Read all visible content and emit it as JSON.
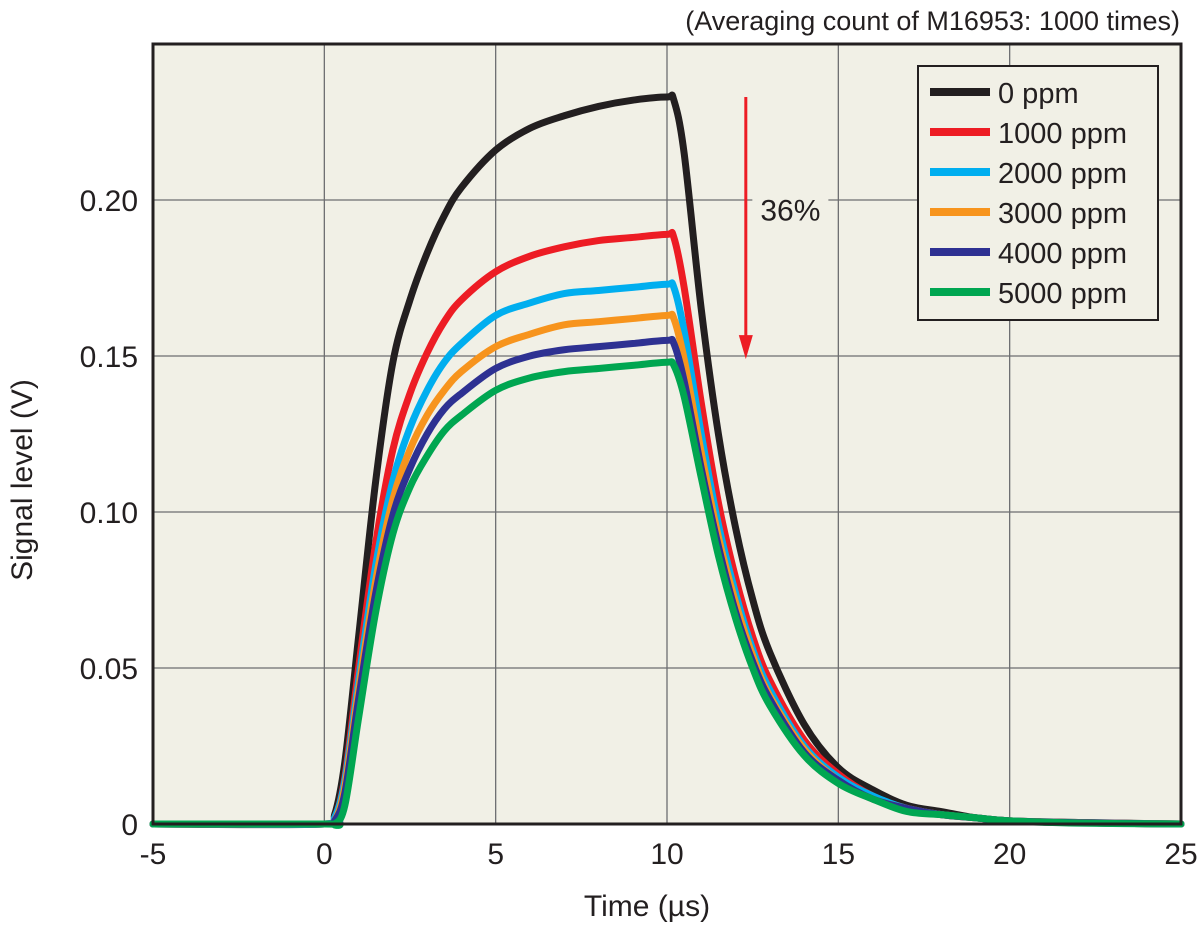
{
  "chart_data": {
    "type": "line",
    "title": "",
    "note": "(Averaging count of M16953: 1000 times)",
    "xlabel": "Time (µs)",
    "ylabel": "Signal level (V)",
    "xlim": [
      -5,
      25
    ],
    "ylim": [
      0,
      0.25
    ],
    "xticks": [
      -5,
      0,
      5,
      10,
      15,
      20,
      25
    ],
    "xtick_labels": [
      "-5",
      "0",
      "5",
      "10",
      "15",
      "20",
      "25"
    ],
    "yticks": [
      0,
      0.05,
      0.1,
      0.15,
      0.2
    ],
    "ytick_labels": [
      "0",
      "0.05",
      "0.10",
      "0.15",
      "0.20"
    ],
    "grid": true,
    "background": "#f1f0e6",
    "legend_position": "top-right",
    "x": [
      -5,
      0,
      0.3,
      0.6,
      1,
      1.5,
      2,
      2.5,
      3,
      3.5,
      4,
      5,
      6,
      7,
      8,
      9,
      10,
      10.2,
      10.5,
      11,
      11.5,
      12,
      12.5,
      13,
      14,
      15,
      16,
      17,
      18,
      19,
      20,
      22,
      25
    ],
    "series": [
      {
        "name": "0 ppm",
        "color": "#231f20",
        "values": [
          0,
          0,
          0.003,
          0.02,
          0.06,
          0.11,
          0.148,
          0.168,
          0.183,
          0.195,
          0.204,
          0.216,
          0.223,
          0.227,
          0.23,
          0.232,
          0.233,
          0.232,
          0.215,
          0.165,
          0.125,
          0.095,
          0.072,
          0.055,
          0.032,
          0.018,
          0.011,
          0.006,
          0.004,
          0.002,
          0.001,
          0.0005,
          0
        ]
      },
      {
        "name": "1000 ppm",
        "color": "#ed1c24",
        "values": [
          0,
          0,
          0.002,
          0.015,
          0.05,
          0.09,
          0.12,
          0.138,
          0.151,
          0.161,
          0.168,
          0.177,
          0.182,
          0.185,
          0.187,
          0.188,
          0.189,
          0.188,
          0.172,
          0.135,
          0.103,
          0.079,
          0.06,
          0.046,
          0.027,
          0.016,
          0.009,
          0.005,
          0.003,
          0.002,
          0.001,
          0.0004,
          0
        ]
      },
      {
        "name": "2000 ppm",
        "color": "#00aeef",
        "values": [
          0,
          0,
          0.002,
          0.014,
          0.046,
          0.083,
          0.11,
          0.127,
          0.139,
          0.148,
          0.154,
          0.163,
          0.167,
          0.17,
          0.171,
          0.172,
          0.173,
          0.172,
          0.158,
          0.125,
          0.096,
          0.074,
          0.056,
          0.043,
          0.025,
          0.015,
          0.009,
          0.005,
          0.003,
          0.002,
          0.001,
          0.0004,
          0
        ]
      },
      {
        "name": "3000 ppm",
        "color": "#f7941d",
        "values": [
          0,
          0,
          0.001,
          0.012,
          0.043,
          0.078,
          0.104,
          0.12,
          0.131,
          0.139,
          0.145,
          0.153,
          0.157,
          0.16,
          0.161,
          0.162,
          0.163,
          0.162,
          0.149,
          0.119,
          0.092,
          0.071,
          0.054,
          0.041,
          0.024,
          0.014,
          0.008,
          0.005,
          0.003,
          0.002,
          0.001,
          0.0004,
          0
        ]
      },
      {
        "name": "4000 ppm",
        "color": "#2e3192",
        "values": [
          0,
          0,
          0.001,
          0.01,
          0.04,
          0.074,
          0.099,
          0.114,
          0.125,
          0.133,
          0.138,
          0.146,
          0.15,
          0.152,
          0.153,
          0.154,
          0.155,
          0.154,
          0.142,
          0.114,
          0.089,
          0.068,
          0.052,
          0.04,
          0.023,
          0.014,
          0.008,
          0.005,
          0.003,
          0.002,
          0.001,
          0.0004,
          0
        ]
      },
      {
        "name": "5000 ppm",
        "color": "#00a651",
        "values": [
          0,
          0,
          0,
          0.006,
          0.034,
          0.068,
          0.093,
          0.108,
          0.118,
          0.126,
          0.131,
          0.139,
          0.143,
          0.145,
          0.146,
          0.147,
          0.148,
          0.147,
          0.137,
          0.111,
          0.086,
          0.066,
          0.05,
          0.038,
          0.022,
          0.013,
          0.008,
          0.004,
          0.003,
          0.002,
          0.001,
          0.0003,
          0
        ]
      }
    ],
    "annotation": {
      "text": "36%",
      "color": "#ed1c24",
      "arrow_from": [
        12.3,
        0.233
      ],
      "arrow_to": [
        12.3,
        0.149
      ],
      "label_at": [
        13.6,
        0.197
      ]
    }
  }
}
